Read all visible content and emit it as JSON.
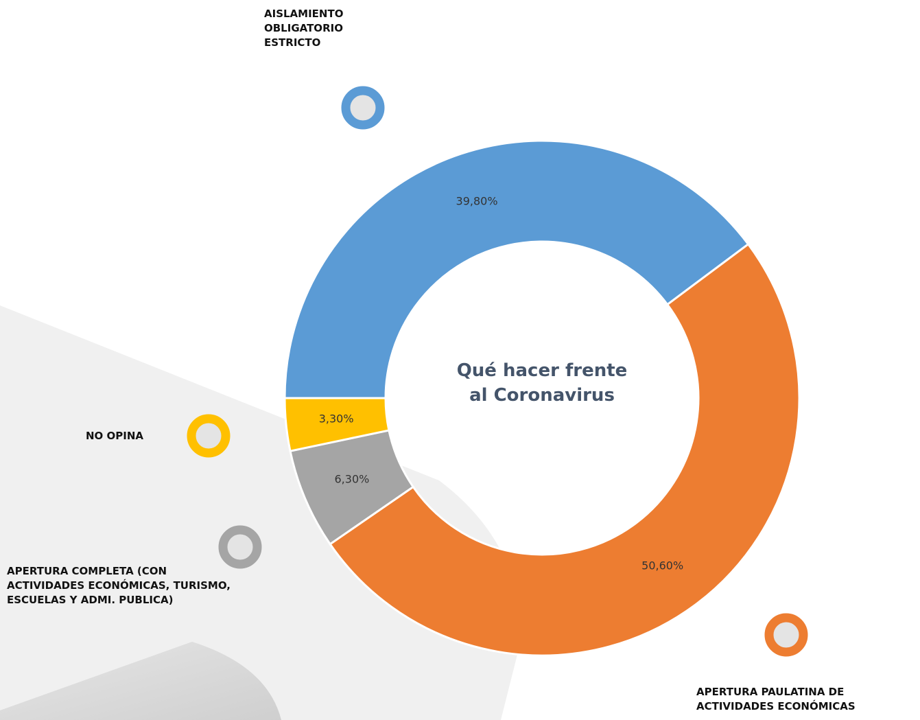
{
  "chart_data": {
    "type": "donut",
    "title": "Qué hacer frente al Coronavirus",
    "categories": [
      "AISLAMIENTO OBLIGATORIO ESTRICTO",
      "APERTURA PAULATINA DE ACTIVIDADES ECONÓMICAS",
      "APERTURA COMPLETA (CON ACTIVIDADES ECONÓMICAS, TURISMO, ESCUELAS Y ADMI. PUBLICA)",
      "NO OPINA"
    ],
    "values": [
      39.8,
      50.6,
      6.3,
      3.3
    ],
    "value_labels": [
      "39,80%",
      "50,60%",
      "6,30%",
      "3,30%"
    ],
    "colors": [
      "#5b9bd5",
      "#ed7d31",
      "#a5a5a5",
      "#ffc000"
    ]
  }
}
